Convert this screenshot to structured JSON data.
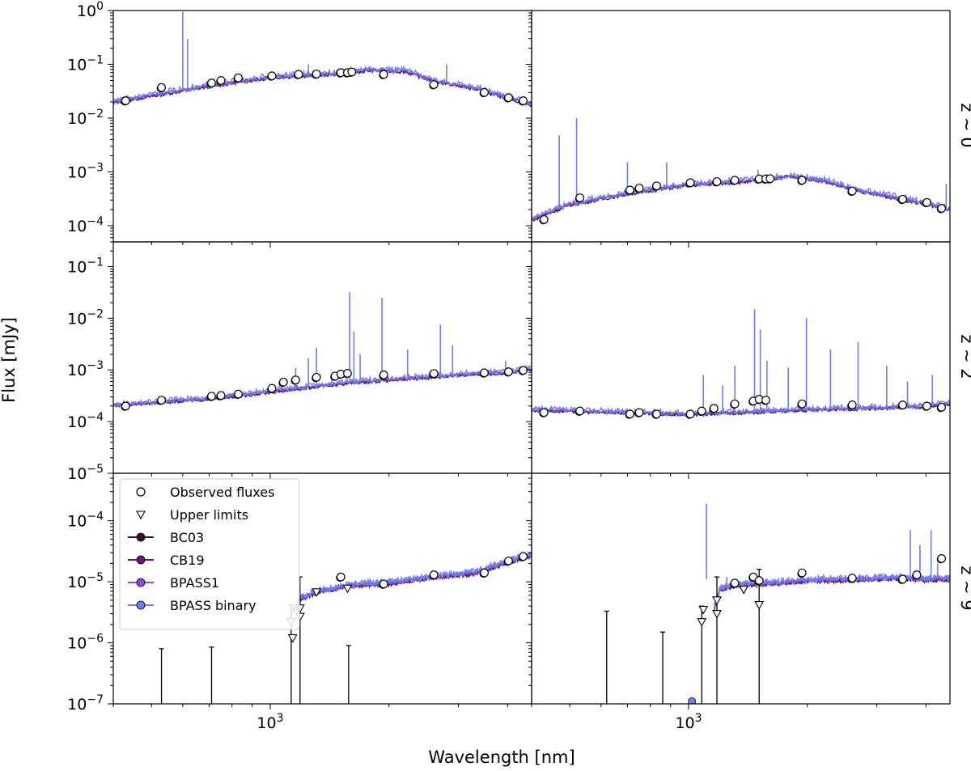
{
  "figure": {
    "xlabel": "Wavelength [nm]",
    "ylabel": "Flux [mJy]",
    "x_tick_label": "10^3",
    "legend": {
      "entries": [
        {
          "label": "Observed fluxes",
          "marker": "circle-open",
          "color": "#ffffff"
        },
        {
          "label": "Upper limits",
          "marker": "triangle-down-open",
          "color": "#ffffff"
        },
        {
          "label": "BC03",
          "marker": "circle-line",
          "color": "#3b0f2b"
        },
        {
          "label": "CB19",
          "marker": "circle-line",
          "color": "#6a1478"
        },
        {
          "label": "BPASS1",
          "marker": "circle-line",
          "color": "#8a4fd6"
        },
        {
          "label": "BPASS binary",
          "marker": "circle-line",
          "color": "#6f7ef0"
        }
      ],
      "placement": "upper-left of bottom-left panel"
    },
    "colors": {
      "BC03": "#3b0f2b",
      "CB19": "#6a1478",
      "BPASS1": "#8a4fd6",
      "BPASS binary": "#6f7ef0"
    }
  },
  "chart_data": [
    {
      "type": "line",
      "panel": "z~0 left",
      "row_label": "",
      "x_scale": "log",
      "y_scale": "log",
      "xlim": [
        400,
        4600
      ],
      "ylim": [
        5e-05,
        1
      ],
      "y_ticks": [
        "10^-4",
        "10^-3",
        "10^-2",
        "10^-1",
        "10^0"
      ],
      "sed": [
        [
          400,
          0.02
        ],
        [
          700,
          0.04
        ],
        [
          1000,
          0.058
        ],
        [
          1500,
          0.068
        ],
        [
          1800,
          0.08
        ],
        [
          2200,
          0.075
        ],
        [
          2600,
          0.05
        ],
        [
          3300,
          0.036
        ],
        [
          4000,
          0.024
        ],
        [
          4600,
          0.018
        ]
      ],
      "emission_lines": [
        [
          600,
          0.95
        ],
        [
          617,
          0.3
        ],
        [
          1250,
          0.1
        ],
        [
          1600,
          0.09
        ],
        [
          2800,
          0.1
        ]
      ],
      "observed": [
        [
          430,
          0.021
        ],
        [
          530,
          0.037
        ],
        [
          710,
          0.045
        ],
        [
          750,
          0.05
        ],
        [
          830,
          0.056
        ],
        [
          1010,
          0.061
        ],
        [
          1180,
          0.065
        ],
        [
          1310,
          0.066
        ],
        [
          1510,
          0.07
        ],
        [
          1570,
          0.07
        ],
        [
          1610,
          0.072
        ],
        [
          1940,
          0.065
        ],
        [
          2600,
          0.042
        ],
        [
          3490,
          0.03
        ],
        [
          4020,
          0.024
        ],
        [
          4380,
          0.021
        ]
      ],
      "upper_limits": []
    },
    {
      "type": "line",
      "panel": "z~0 right",
      "row_label": "z ~ 0",
      "x_scale": "log",
      "y_scale": "log",
      "xlim": [
        400,
        4600
      ],
      "ylim": [
        5e-05,
        1
      ],
      "y_ticks": [],
      "sed": [
        [
          400,
          0.00013
        ],
        [
          500,
          0.00025
        ],
        [
          700,
          0.0004
        ],
        [
          1000,
          0.00058
        ],
        [
          1500,
          0.0007
        ],
        [
          1800,
          0.00085
        ],
        [
          2200,
          0.0007
        ],
        [
          2600,
          0.00048
        ],
        [
          3300,
          0.00034
        ],
        [
          4000,
          0.00026
        ],
        [
          4600,
          0.0002
        ]
      ],
      "emission_lines": [
        [
          470,
          0.0048
        ],
        [
          520,
          0.01
        ],
        [
          700,
          0.0015
        ],
        [
          880,
          0.0015
        ],
        [
          1500,
          0.0011
        ],
        [
          2000,
          0.0009
        ],
        [
          4500,
          0.0006
        ]
      ],
      "observed": [
        [
          430,
          0.00013
        ],
        [
          530,
          0.00033
        ],
        [
          710,
          0.00046
        ],
        [
          750,
          0.0005
        ],
        [
          830,
          0.00055
        ],
        [
          1010,
          0.00063
        ],
        [
          1180,
          0.00066
        ],
        [
          1310,
          0.0007
        ],
        [
          1510,
          0.00074
        ],
        [
          1570,
          0.00074
        ],
        [
          1610,
          0.00075
        ],
        [
          1940,
          0.0007
        ],
        [
          2600,
          0.00044
        ],
        [
          3490,
          0.00031
        ],
        [
          4020,
          0.00027
        ],
        [
          4380,
          0.00021
        ]
      ],
      "upper_limits": []
    },
    {
      "type": "line",
      "panel": "z~2 left",
      "row_label": "",
      "x_scale": "log",
      "y_scale": "log",
      "xlim": [
        400,
        4600
      ],
      "ylim": [
        1e-05,
        0.3
      ],
      "y_ticks": [
        "10^-5",
        "10^-4",
        "10^-3",
        "10^-2",
        "10^-1"
      ],
      "sed": [
        [
          400,
          0.00021
        ],
        [
          700,
          0.00028
        ],
        [
          1000,
          0.00038
        ],
        [
          1300,
          0.00048
        ],
        [
          1600,
          0.00058
        ],
        [
          2000,
          0.00065
        ],
        [
          2600,
          0.00075
        ],
        [
          3300,
          0.00085
        ],
        [
          4000,
          0.0009
        ],
        [
          4600,
          0.00105
        ]
      ],
      "emission_lines": [
        [
          1160,
          0.0011
        ],
        [
          1250,
          0.0017
        ],
        [
          1310,
          0.0027
        ],
        [
          1590,
          0.032
        ],
        [
          1630,
          0.0055
        ],
        [
          1690,
          0.002
        ],
        [
          1920,
          0.025
        ],
        [
          2230,
          0.0025
        ],
        [
          2700,
          0.0075
        ],
        [
          2900,
          0.003
        ],
        [
          3950,
          0.0015
        ]
      ],
      "observed": [
        [
          430,
          0.0002
        ],
        [
          530,
          0.00026
        ],
        [
          710,
          0.00031
        ],
        [
          750,
          0.00032
        ],
        [
          830,
          0.00034
        ],
        [
          1010,
          0.00044
        ],
        [
          1080,
          0.00058
        ],
        [
          1160,
          0.00064
        ],
        [
          1310,
          0.00072
        ],
        [
          1460,
          0.00076
        ],
        [
          1510,
          0.00083
        ],
        [
          1570,
          0.00086
        ],
        [
          1940,
          0.0008
        ],
        [
          2600,
          0.00085
        ],
        [
          3490,
          0.00088
        ],
        [
          4020,
          0.00092
        ],
        [
          4380,
          0.00098
        ]
      ],
      "upper_limits": []
    },
    {
      "type": "line",
      "panel": "z~2 right",
      "row_label": "z ~ 2",
      "x_scale": "log",
      "y_scale": "log",
      "xlim": [
        400,
        4600
      ],
      "ylim": [
        1e-05,
        0.3
      ],
      "y_ticks": [],
      "sed": [
        [
          400,
          0.00017
        ],
        [
          700,
          0.00015
        ],
        [
          1000,
          0.00014
        ],
        [
          1300,
          0.00015
        ],
        [
          1600,
          0.00016
        ],
        [
          2000,
          0.00017
        ],
        [
          2600,
          0.00018
        ],
        [
          3300,
          0.00019
        ],
        [
          4000,
          0.0002
        ],
        [
          4600,
          0.00022
        ]
      ],
      "emission_lines": [
        [
          1090,
          0.0008
        ],
        [
          1220,
          0.0005
        ],
        [
          1310,
          0.0012
        ],
        [
          1470,
          0.015
        ],
        [
          1520,
          0.006
        ],
        [
          1580,
          0.0015
        ],
        [
          1790,
          0.0011
        ],
        [
          1990,
          0.01
        ],
        [
          2290,
          0.0025
        ],
        [
          2690,
          0.0035
        ],
        [
          3180,
          0.0012
        ],
        [
          3590,
          0.0006
        ],
        [
          4150,
          0.0008
        ]
      ],
      "observed": [
        [
          430,
          0.00015
        ],
        [
          530,
          0.00016
        ],
        [
          710,
          0.00014
        ],
        [
          750,
          0.00015
        ],
        [
          830,
          0.00014
        ],
        [
          1010,
          0.00014
        ],
        [
          1080,
          0.00016
        ],
        [
          1160,
          0.00018
        ],
        [
          1310,
          0.00022
        ],
        [
          1460,
          0.00025
        ],
        [
          1510,
          0.00027
        ],
        [
          1570,
          0.00026
        ],
        [
          1940,
          0.00022
        ],
        [
          2600,
          0.00021
        ],
        [
          3490,
          0.00021
        ],
        [
          4020,
          0.0002
        ],
        [
          4380,
          0.00019
        ]
      ],
      "upper_limits": []
    },
    {
      "type": "line",
      "panel": "z~9 left",
      "row_label": "",
      "x_scale": "log",
      "y_scale": "log",
      "xlim": [
        400,
        4600
      ],
      "ylim": [
        1e-07,
        0.0006
      ],
      "y_ticks": [
        "10^-7",
        "10^-6",
        "10^-5",
        "10^-4"
      ],
      "sed": [
        [
          1130,
          3e-06
        ],
        [
          1200,
          5.5e-06
        ],
        [
          1310,
          6.8e-06
        ],
        [
          1600,
          8.8e-06
        ],
        [
          2000,
          9.5e-06
        ],
        [
          2600,
          1.2e-05
        ],
        [
          3300,
          1.4e-05
        ],
        [
          4000,
          2.1e-05
        ],
        [
          4600,
          2.8e-05
        ]
      ],
      "emission_lines": [],
      "observed": [
        [
          1510,
          1.2e-05
        ],
        [
          1940,
          9.2e-06
        ],
        [
          2600,
          1.3e-05
        ],
        [
          3490,
          1.4e-05
        ],
        [
          4020,
          2.2e-05
        ],
        [
          4380,
          2.6e-05
        ]
      ],
      "upper_limits": [
        [
          1130,
          2.2e-06
        ],
        [
          1190,
          2.7e-06
        ],
        [
          1140,
          1.2e-06
        ],
        [
          1190,
          3.7e-06
        ],
        [
          1310,
          6.8e-06
        ],
        [
          1570,
          7.8e-06
        ]
      ],
      "error_bars": [
        [
          530,
          8e-07
        ],
        [
          710,
          8.5e-07
        ],
        [
          1130,
          4.2e-06
        ],
        [
          1190,
          1.2e-05
        ],
        [
          1580,
          9e-07
        ]
      ]
    },
    {
      "type": "line",
      "panel": "z~9 right",
      "row_label": "z ~ 9",
      "x_scale": "log",
      "y_scale": "log",
      "xlim": [
        400,
        4600
      ],
      "ylim": [
        1e-07,
        0.0006
      ],
      "y_ticks": [],
      "sed": [
        [
          1160,
          3.5e-06
        ],
        [
          1200,
          7.5e-06
        ],
        [
          1310,
          8.8e-06
        ],
        [
          1600,
          9.5e-06
        ],
        [
          2000,
          1.05e-05
        ],
        [
          2600,
          1.1e-05
        ],
        [
          3300,
          1.15e-05
        ],
        [
          4000,
          1.1e-05
        ],
        [
          4600,
          1.1e-05
        ]
      ],
      "emission_lines": [
        [
          1110,
          0.00019
        ],
        [
          1250,
          1.2e-05
        ],
        [
          3650,
          7e-05
        ],
        [
          3860,
          4e-05
        ],
        [
          4120,
          7e-05
        ],
        [
          4280,
          2e-05
        ]
      ],
      "observed": [
        [
          1310,
          9.5e-06
        ],
        [
          1460,
          1.2e-05
        ],
        [
          1510,
          1.05e-05
        ],
        [
          1940,
          1.4e-05
        ],
        [
          2600,
          1.15e-05
        ],
        [
          3490,
          1.1e-05
        ],
        [
          3790,
          1.3e-05
        ],
        [
          4380,
          2.4e-05
        ]
      ],
      "upper_limits": [
        [
          1080,
          2.2e-06
        ],
        [
          1180,
          3e-06
        ],
        [
          1090,
          3.5e-06
        ],
        [
          1180,
          5e-06
        ],
        [
          1380,
          7.5e-06
        ],
        [
          1510,
          4.2e-06
        ]
      ],
      "error_bars": [
        [
          620,
          3.3e-06
        ],
        [
          860,
          1.5e-06
        ],
        [
          1080,
          4e-06
        ],
        [
          1180,
          1.2e-05
        ],
        [
          1510,
          1.6e-05
        ]
      ],
      "extra_points": [
        [
          1020,
          1.1e-07
        ]
      ]
    }
  ]
}
